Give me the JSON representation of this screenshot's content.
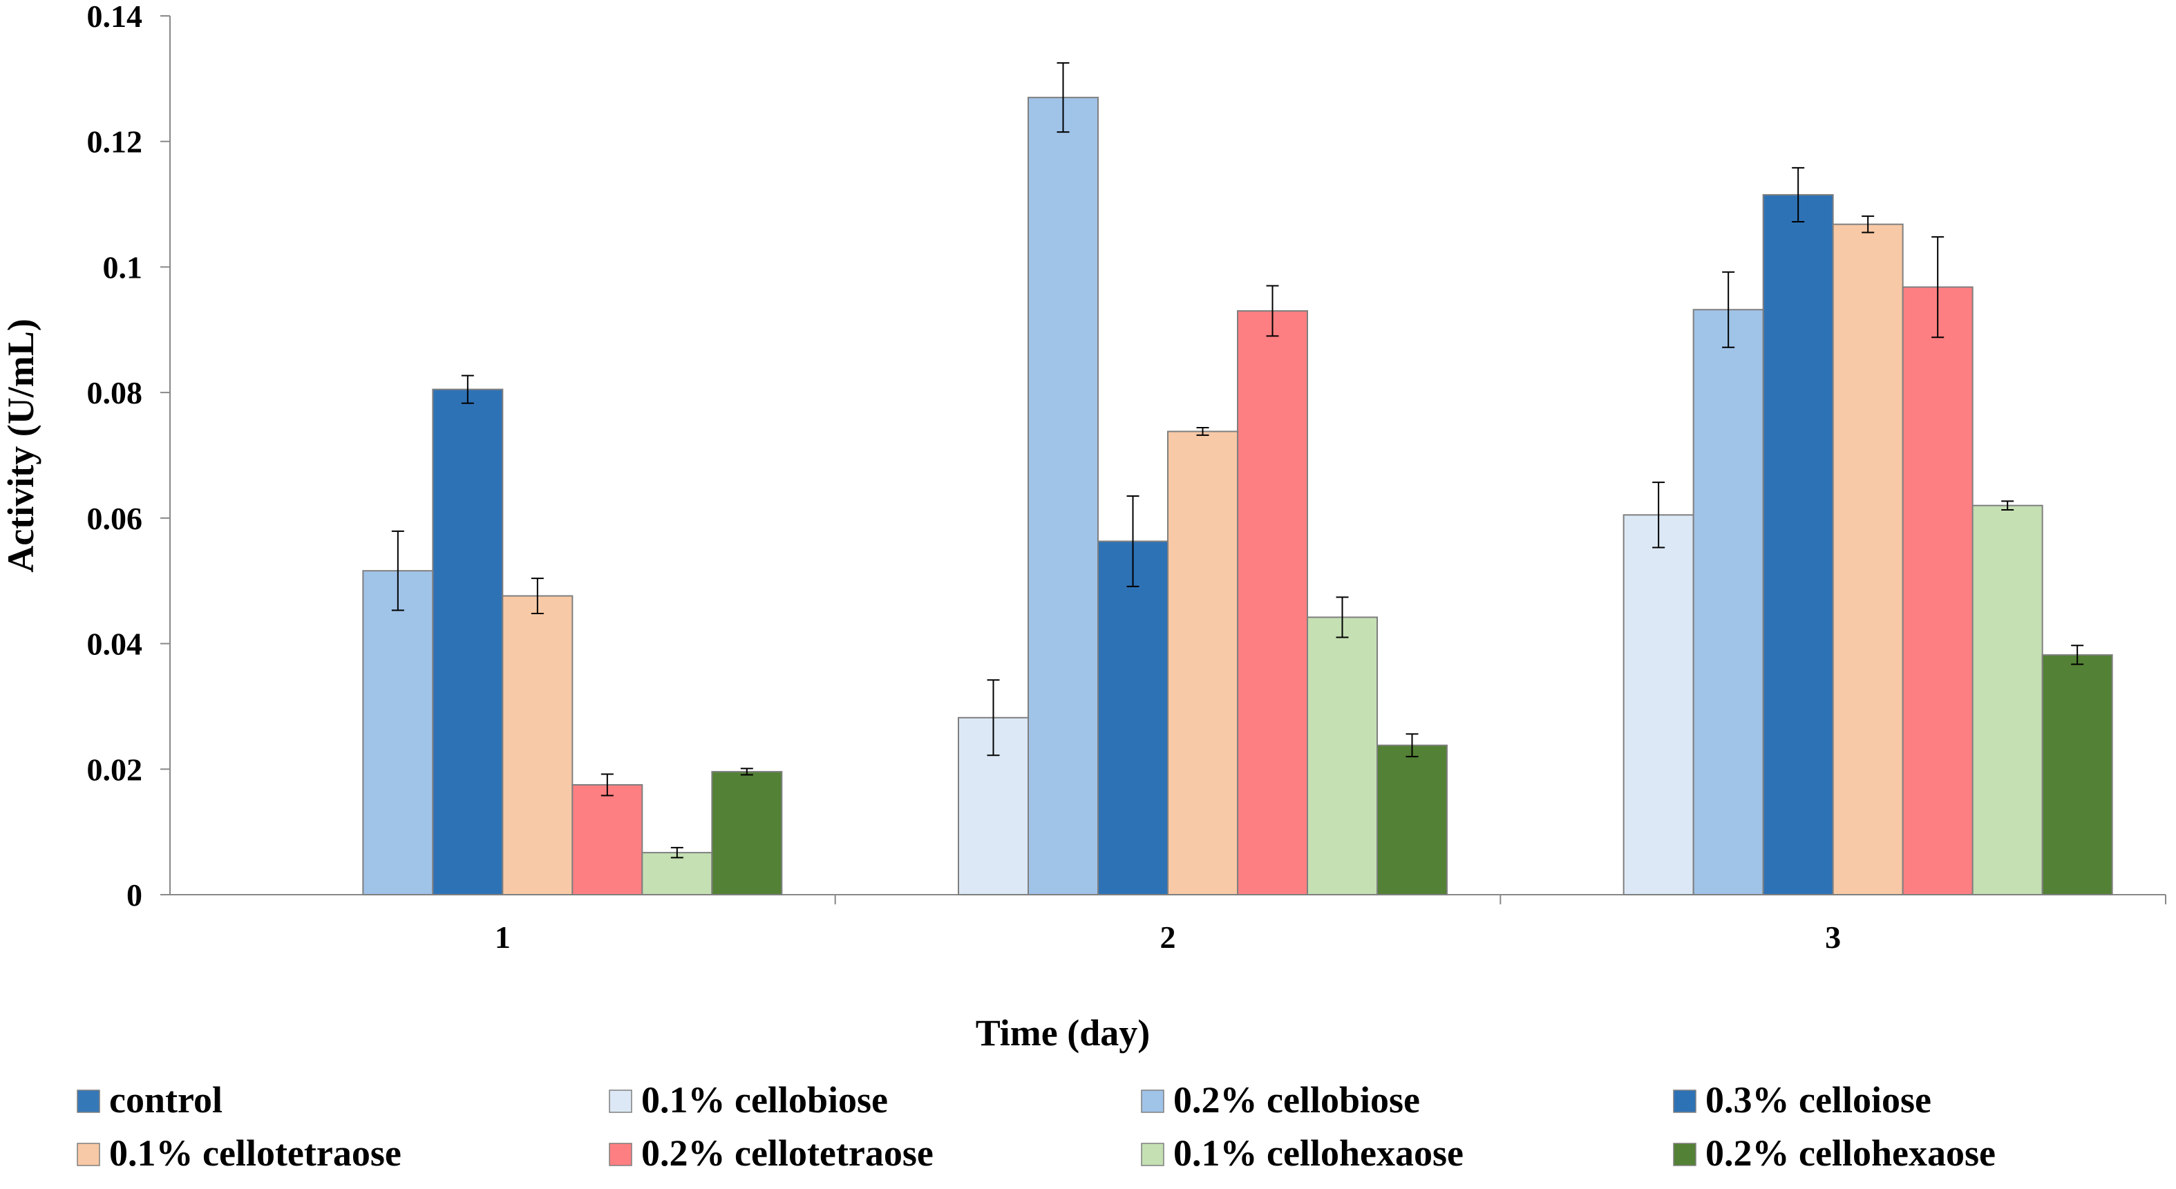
{
  "chart_data": {
    "type": "bar",
    "title": "",
    "xlabel": "Time (day)",
    "ylabel": "Activity  (U/mL)",
    "ylim": [
      0,
      0.14
    ],
    "yticks": [
      0,
      0.02,
      0.04,
      0.06,
      0.08,
      0.1,
      0.12,
      0.14
    ],
    "ytick_labels": [
      "0",
      "0.02",
      "0.04",
      "0.06",
      "0.08",
      "0.1",
      "0.12",
      "0.14"
    ],
    "categories": [
      "1",
      "2",
      "3"
    ],
    "grid": false,
    "legend_position": "bottom",
    "series": [
      {
        "name": "control",
        "color": "#3578b8",
        "values": [
          0,
          0,
          0
        ],
        "errors": [
          0,
          0,
          0
        ]
      },
      {
        "name": "0.1% cellobiose",
        "color": "#dce8f5",
        "values": [
          0,
          0.0282,
          0.0605
        ],
        "errors": [
          0,
          0.006,
          0.0052
        ]
      },
      {
        "name": "0.2% cellobiose",
        "color": "#a0c3e8",
        "values": [
          0.0516,
          0.127,
          0.0932
        ],
        "errors": [
          0.0063,
          0.0055,
          0.006
        ]
      },
      {
        "name": "0.3% celloiose",
        "color": "#2e72b6",
        "values": [
          0.0805,
          0.0563,
          0.1115
        ],
        "errors": [
          0.0022,
          0.0072,
          0.0043
        ]
      },
      {
        "name": "0.1% cellotetraose",
        "color": "#f8c9a6",
        "values": [
          0.0476,
          0.0738,
          0.1068
        ],
        "errors": [
          0.0028,
          0.0006,
          0.0013
        ]
      },
      {
        "name": "0.2% cellotetraose",
        "color": "#fe7f82",
        "values": [
          0.0175,
          0.093,
          0.0968
        ],
        "errors": [
          0.0017,
          0.004,
          0.008
        ]
      },
      {
        "name": "0.1% cellohexaose",
        "color": "#c5e0b3",
        "values": [
          0.0067,
          0.0442,
          0.062
        ],
        "errors": [
          0.0008,
          0.0032,
          0.0007
        ]
      },
      {
        "name": "0.2% cellohexaose",
        "color": "#538135",
        "values": [
          0.0196,
          0.0238,
          0.0382
        ],
        "errors": [
          0.0005,
          0.0018,
          0.0015
        ]
      }
    ]
  }
}
